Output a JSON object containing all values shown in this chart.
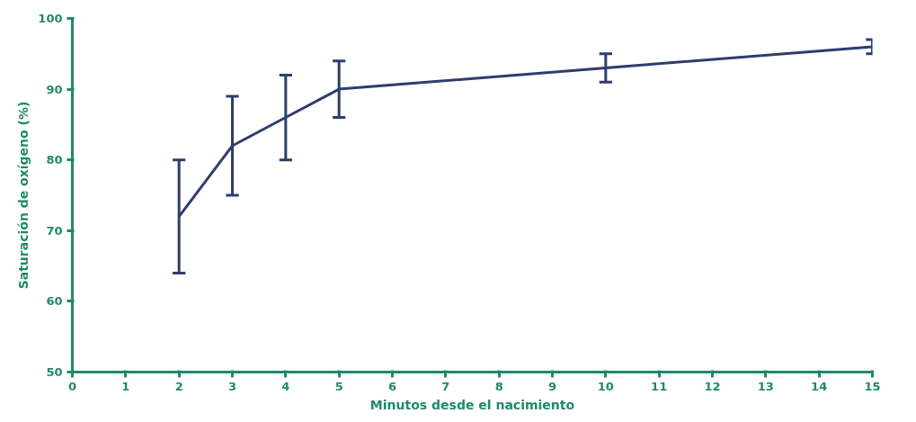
{
  "chart_data": {
    "type": "line",
    "xlabel": "Minutos desde el nacimiento",
    "ylabel": "Saturación de oxígeno (%)",
    "x": [
      2,
      3,
      4,
      5,
      10,
      15
    ],
    "series": [
      {
        "color": "#2e3d6e",
        "values": [
          72,
          82,
          86,
          90,
          93,
          96
        ],
        "errors": [
          [
            64,
            80
          ],
          [
            75,
            89
          ],
          [
            80,
            92
          ],
          [
            86,
            94
          ],
          [
            91,
            95
          ],
          [
            95,
            97
          ]
        ]
      }
    ],
    "xlim": [
      0,
      15
    ],
    "ylim": [
      50,
      100
    ],
    "xticks": [
      0,
      1,
      2,
      3,
      4,
      5,
      6,
      7,
      8,
      9,
      10,
      11,
      12,
      13,
      14,
      15
    ],
    "yticks": [
      50,
      60,
      70,
      80,
      90,
      100
    ],
    "grid": false
  }
}
